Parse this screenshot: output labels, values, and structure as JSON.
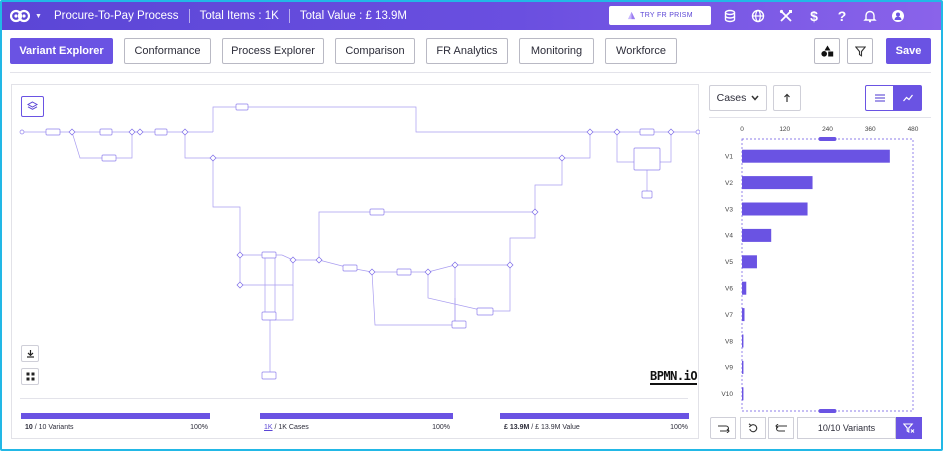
{
  "topbar": {
    "title": "Procure-To-Pay Process",
    "total_items": "Total Items : 1K",
    "total_value": "Total Value : £ 13.9M",
    "try_button": "TRY FR PRISM",
    "icons": [
      "database-icon",
      "globe-icon",
      "tools-icon",
      "dollar-icon",
      "help-icon",
      "bell-icon",
      "user-settings-icon"
    ]
  },
  "tabs": [
    {
      "label": "Variant Explorer",
      "active": true
    },
    {
      "label": "Conformance",
      "active": false
    },
    {
      "label": "Process Explorer",
      "active": false
    },
    {
      "label": "Comparison",
      "active": false
    },
    {
      "label": "FR Analytics",
      "active": false
    },
    {
      "label": "Monitoring",
      "active": false
    },
    {
      "label": "Workforce",
      "active": false
    }
  ],
  "toolbar": {
    "save_label": "Save"
  },
  "canvas": {
    "bpmn_logo": "BPMN.iO"
  },
  "progress": {
    "variants": {
      "count": "10",
      "total": "/ 10 Variants",
      "pct": "100%",
      "fraction": 1.0
    },
    "cases": {
      "count": "1K",
      "total": "/ 1K Cases",
      "pct": "100%",
      "fraction": 1.0
    },
    "value": {
      "count": "£ 13.9M",
      "total": "/ £ 13.9M Value",
      "pct": "100%",
      "fraction": 1.0
    }
  },
  "right_panel": {
    "select_value": "Cases",
    "variants_label": "10/10 Variants"
  },
  "chart_data": {
    "type": "bar",
    "orientation": "horizontal",
    "categories": [
      "V1",
      "V2",
      "V3",
      "V4",
      "V5",
      "V6",
      "V7",
      "V8",
      "V9",
      "V10"
    ],
    "values": [
      415,
      198,
      184,
      82,
      42,
      12,
      7,
      4,
      4,
      4
    ],
    "xticks": [
      "0",
      "120",
      "240",
      "360",
      "480"
    ],
    "xlim": [
      0,
      480
    ],
    "color": "#6a53e3"
  }
}
